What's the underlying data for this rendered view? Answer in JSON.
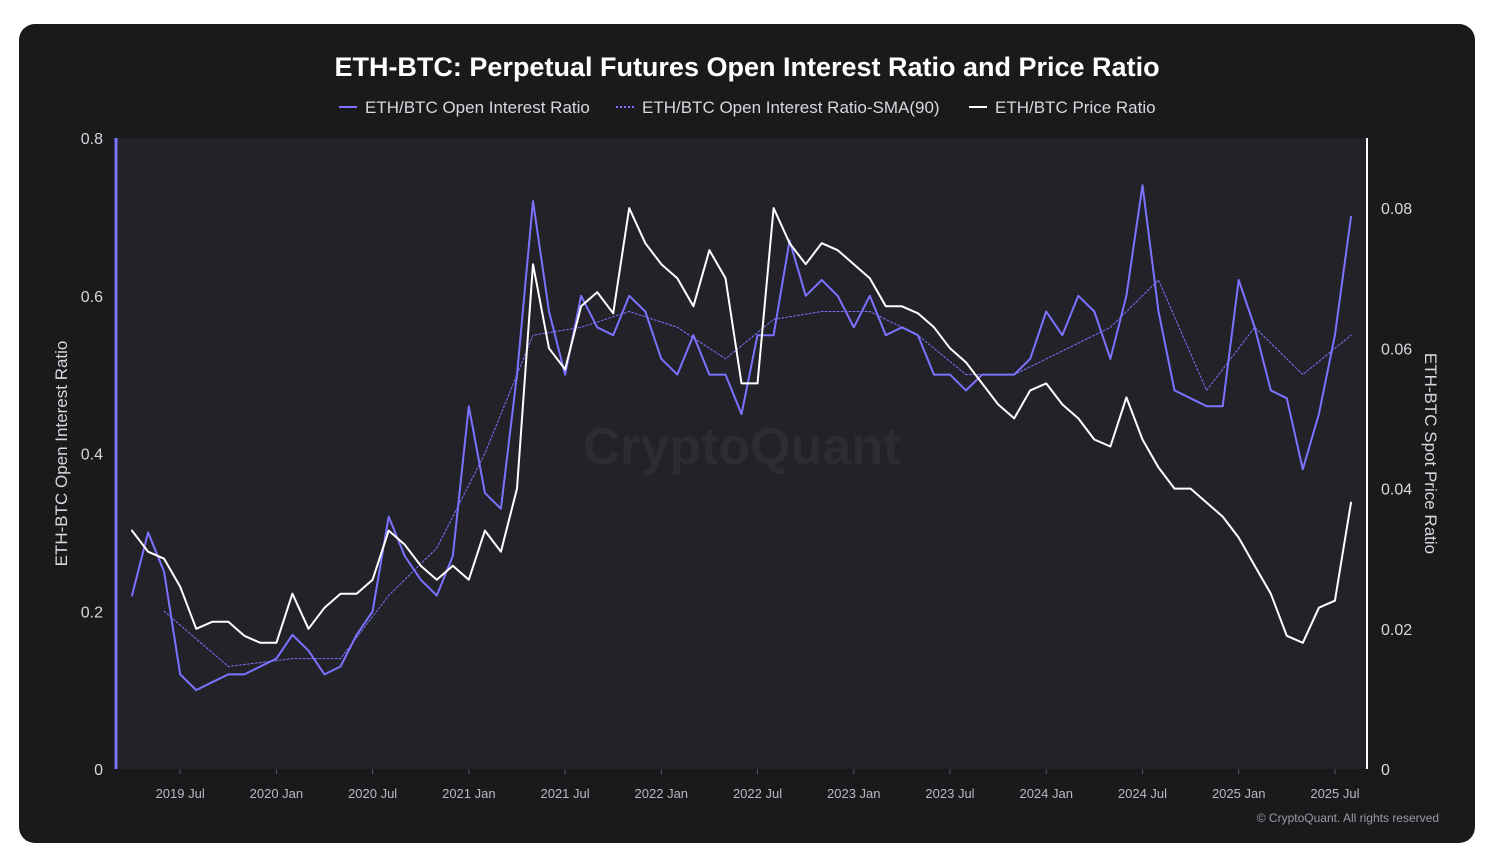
{
  "chart_data": {
    "type": "line",
    "title": "ETH-BTC: Perpetual Futures Open Interest Ratio and Price Ratio",
    "ylabel_left": "ETH-BTC Open Interest Ratio",
    "ylabel_right": "ETH-BTC Spot Price Ratio",
    "ylim_left": [
      0,
      0.8
    ],
    "ylim_right": [
      0,
      0.09
    ],
    "yticks_left": [
      "0",
      "0.2",
      "0.4",
      "0.6",
      "0.8"
    ],
    "yticks_right": [
      "0",
      "0.02",
      "0.04",
      "0.06",
      "0.08"
    ],
    "xticks": [
      "2019 Jul",
      "2020 Jan",
      "2020 Jul",
      "2021 Jan",
      "2021 Jul",
      "2022 Jan",
      "2022 Jul",
      "2023 Jan",
      "2023 Jul",
      "2024 Jan",
      "2024 Jul",
      "2025 Jan",
      "2025 Jul"
    ],
    "x_range": [
      "2019-03",
      "2025-09"
    ],
    "legend_position": "top",
    "grid": false,
    "watermark": "CryptoQuant",
    "copyright": "© CryptoQuant. All rights reserved",
    "colors": {
      "background": "#1a1a1d",
      "plot_background": "#222228",
      "oi": "#7b72ff",
      "sma": "#7b72ff",
      "price": "#ffffff",
      "text": "#d8d8dc"
    },
    "series": [
      {
        "name": "ETH/BTC Open Interest Ratio",
        "axis": "left",
        "style": "solid",
        "x": [
          "2019-04",
          "2019-05",
          "2019-06",
          "2019-07",
          "2019-08",
          "2019-09",
          "2019-10",
          "2019-11",
          "2019-12",
          "2020-01",
          "2020-02",
          "2020-03",
          "2020-04",
          "2020-05",
          "2020-06",
          "2020-07",
          "2020-08",
          "2020-09",
          "2020-10",
          "2020-11",
          "2020-12",
          "2021-01",
          "2021-02",
          "2021-03",
          "2021-04",
          "2021-05",
          "2021-06",
          "2021-07",
          "2021-08",
          "2021-09",
          "2021-10",
          "2021-11",
          "2021-12",
          "2022-01",
          "2022-02",
          "2022-03",
          "2022-04",
          "2022-05",
          "2022-06",
          "2022-07",
          "2022-08",
          "2022-09",
          "2022-10",
          "2022-11",
          "2022-12",
          "2023-01",
          "2023-02",
          "2023-03",
          "2023-04",
          "2023-05",
          "2023-06",
          "2023-07",
          "2023-08",
          "2023-09",
          "2023-10",
          "2023-11",
          "2023-12",
          "2024-01",
          "2024-02",
          "2024-03",
          "2024-04",
          "2024-05",
          "2024-06",
          "2024-07",
          "2024-08",
          "2024-09",
          "2024-10",
          "2024-11",
          "2024-12",
          "2025-01",
          "2025-02",
          "2025-03",
          "2025-04",
          "2025-05",
          "2025-06",
          "2025-07",
          "2025-08"
        ],
        "values": [
          0.22,
          0.3,
          0.25,
          0.12,
          0.1,
          0.11,
          0.12,
          0.12,
          0.13,
          0.14,
          0.17,
          0.15,
          0.12,
          0.13,
          0.17,
          0.2,
          0.32,
          0.27,
          0.24,
          0.22,
          0.27,
          0.46,
          0.35,
          0.33,
          0.5,
          0.72,
          0.58,
          0.5,
          0.6,
          0.56,
          0.55,
          0.6,
          0.58,
          0.52,
          0.5,
          0.55,
          0.5,
          0.5,
          0.45,
          0.55,
          0.55,
          0.67,
          0.6,
          0.62,
          0.6,
          0.56,
          0.6,
          0.55,
          0.56,
          0.55,
          0.5,
          0.5,
          0.48,
          0.5,
          0.5,
          0.5,
          0.52,
          0.58,
          0.55,
          0.6,
          0.58,
          0.52,
          0.6,
          0.74,
          0.58,
          0.48,
          0.47,
          0.46,
          0.46,
          0.62,
          0.56,
          0.48,
          0.47,
          0.38,
          0.45,
          0.55,
          0.7
        ]
      },
      {
        "name": "ETH/BTC Open Interest Ratio-SMA(90)",
        "axis": "left",
        "style": "dotted",
        "x": [
          "2019-06",
          "2019-10",
          "2020-02",
          "2020-05",
          "2020-08",
          "2020-11",
          "2021-02",
          "2021-05",
          "2021-08",
          "2021-11",
          "2022-02",
          "2022-05",
          "2022-08",
          "2022-11",
          "2023-02",
          "2023-05",
          "2023-08",
          "2023-11",
          "2024-02",
          "2024-05",
          "2024-08",
          "2024-11",
          "2025-02",
          "2025-05",
          "2025-08"
        ],
        "values": [
          0.2,
          0.13,
          0.14,
          0.14,
          0.22,
          0.28,
          0.4,
          0.55,
          0.56,
          0.58,
          0.56,
          0.52,
          0.57,
          0.58,
          0.58,
          0.55,
          0.5,
          0.5,
          0.53,
          0.56,
          0.62,
          0.48,
          0.56,
          0.5,
          0.55
        ]
      },
      {
        "name": "ETH/BTC Price Ratio",
        "axis": "right",
        "style": "solid",
        "x": [
          "2019-04",
          "2019-05",
          "2019-06",
          "2019-07",
          "2019-08",
          "2019-09",
          "2019-10",
          "2019-11",
          "2019-12",
          "2020-01",
          "2020-02",
          "2020-03",
          "2020-04",
          "2020-05",
          "2020-06",
          "2020-07",
          "2020-08",
          "2020-09",
          "2020-10",
          "2020-11",
          "2020-12",
          "2021-01",
          "2021-02",
          "2021-03",
          "2021-04",
          "2021-05",
          "2021-06",
          "2021-07",
          "2021-08",
          "2021-09",
          "2021-10",
          "2021-11",
          "2021-12",
          "2022-01",
          "2022-02",
          "2022-03",
          "2022-04",
          "2022-05",
          "2022-06",
          "2022-07",
          "2022-08",
          "2022-09",
          "2022-10",
          "2022-11",
          "2022-12",
          "2023-01",
          "2023-02",
          "2023-03",
          "2023-04",
          "2023-05",
          "2023-06",
          "2023-07",
          "2023-08",
          "2023-09",
          "2023-10",
          "2023-11",
          "2023-12",
          "2024-01",
          "2024-02",
          "2024-03",
          "2024-04",
          "2024-05",
          "2024-06",
          "2024-07",
          "2024-08",
          "2024-09",
          "2024-10",
          "2024-11",
          "2024-12",
          "2025-01",
          "2025-02",
          "2025-03",
          "2025-04",
          "2025-05",
          "2025-06",
          "2025-07",
          "2025-08"
        ],
        "values": [
          0.034,
          0.031,
          0.03,
          0.026,
          0.02,
          0.021,
          0.021,
          0.019,
          0.018,
          0.018,
          0.025,
          0.02,
          0.023,
          0.025,
          0.025,
          0.027,
          0.034,
          0.032,
          0.029,
          0.027,
          0.029,
          0.027,
          0.034,
          0.031,
          0.04,
          0.072,
          0.06,
          0.057,
          0.066,
          0.068,
          0.065,
          0.08,
          0.075,
          0.072,
          0.07,
          0.066,
          0.074,
          0.07,
          0.055,
          0.055,
          0.08,
          0.075,
          0.072,
          0.075,
          0.074,
          0.072,
          0.07,
          0.066,
          0.066,
          0.065,
          0.063,
          0.06,
          0.058,
          0.055,
          0.052,
          0.05,
          0.054,
          0.055,
          0.052,
          0.05,
          0.047,
          0.046,
          0.053,
          0.047,
          0.043,
          0.04,
          0.04,
          0.038,
          0.036,
          0.033,
          0.029,
          0.025,
          0.019,
          0.018,
          0.023,
          0.024,
          0.038
        ]
      }
    ]
  }
}
